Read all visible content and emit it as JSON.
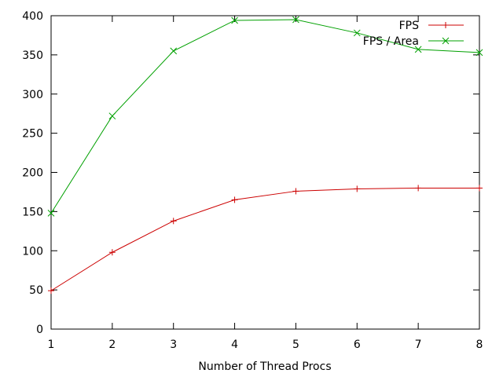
{
  "chart_data": {
    "type": "line",
    "title": "",
    "xlabel": "Number of Thread Procs",
    "ylabel": "",
    "x": [
      1,
      2,
      3,
      4,
      5,
      6,
      7,
      8
    ],
    "xlim": [
      1,
      8
    ],
    "ylim": [
      0,
      400
    ],
    "xticks": [
      1,
      2,
      3,
      4,
      5,
      6,
      7,
      8
    ],
    "yticks": [
      0,
      50,
      100,
      150,
      200,
      250,
      300,
      350,
      400
    ],
    "grid": false,
    "legend_position": "top-right",
    "series": [
      {
        "name": "FPS",
        "color": "#cc0000",
        "marker": "plus",
        "values": [
          49,
          98,
          138,
          165,
          176,
          179,
          180,
          180
        ]
      },
      {
        "name": "FPS / Area",
        "color": "#00a000",
        "marker": "cross",
        "values": [
          148,
          272,
          355,
          394,
          395,
          378,
          357,
          353
        ]
      }
    ]
  }
}
